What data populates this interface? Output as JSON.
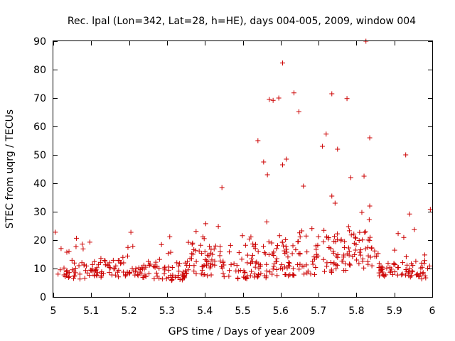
{
  "chart_data": {
    "type": "scatter",
    "title": "Rec. lpal (Lon=342, Lat=28, h=HE), days 004-005, 2009, window 004",
    "xlabel": "GPS time / Days of year 2009",
    "ylabel": "STEC from uqrg / TECUs",
    "xlim": [
      5,
      6
    ],
    "ylim": [
      0,
      90
    ],
    "xticks": [
      "5",
      "5.1",
      "5.2",
      "5.3",
      "5.4",
      "5.5",
      "5.6",
      "5.7",
      "5.8",
      "5.9",
      "6"
    ],
    "yticks": [
      "0",
      "10",
      "20",
      "30",
      "40",
      "50",
      "60",
      "70",
      "80",
      "90"
    ],
    "grid": false,
    "marker": "+",
    "marker_color": "#cc0000",
    "outliers": [
      [
        5.445,
        38.5
      ],
      [
        5.54,
        55
      ],
      [
        5.555,
        47.5
      ],
      [
        5.565,
        43
      ],
      [
        5.57,
        69.5
      ],
      [
        5.58,
        69.2
      ],
      [
        5.595,
        70
      ],
      [
        5.605,
        82.3
      ],
      [
        5.605,
        46.5
      ],
      [
        5.615,
        48.5
      ],
      [
        5.635,
        71.8
      ],
      [
        5.648,
        65.2
      ],
      [
        5.66,
        39
      ],
      [
        5.71,
        53
      ],
      [
        5.72,
        57.3
      ],
      [
        5.735,
        71.5
      ],
      [
        5.735,
        35.5
      ],
      [
        5.75,
        52
      ],
      [
        5.775,
        69.8
      ],
      [
        5.785,
        42
      ],
      [
        5.82,
        42.5
      ],
      [
        5.825,
        90
      ],
      [
        5.835,
        56
      ],
      [
        5.835,
        32
      ],
      [
        5.93,
        50
      ],
      [
        5.94,
        29.2
      ],
      [
        5.995,
        30.8
      ]
    ]
  }
}
